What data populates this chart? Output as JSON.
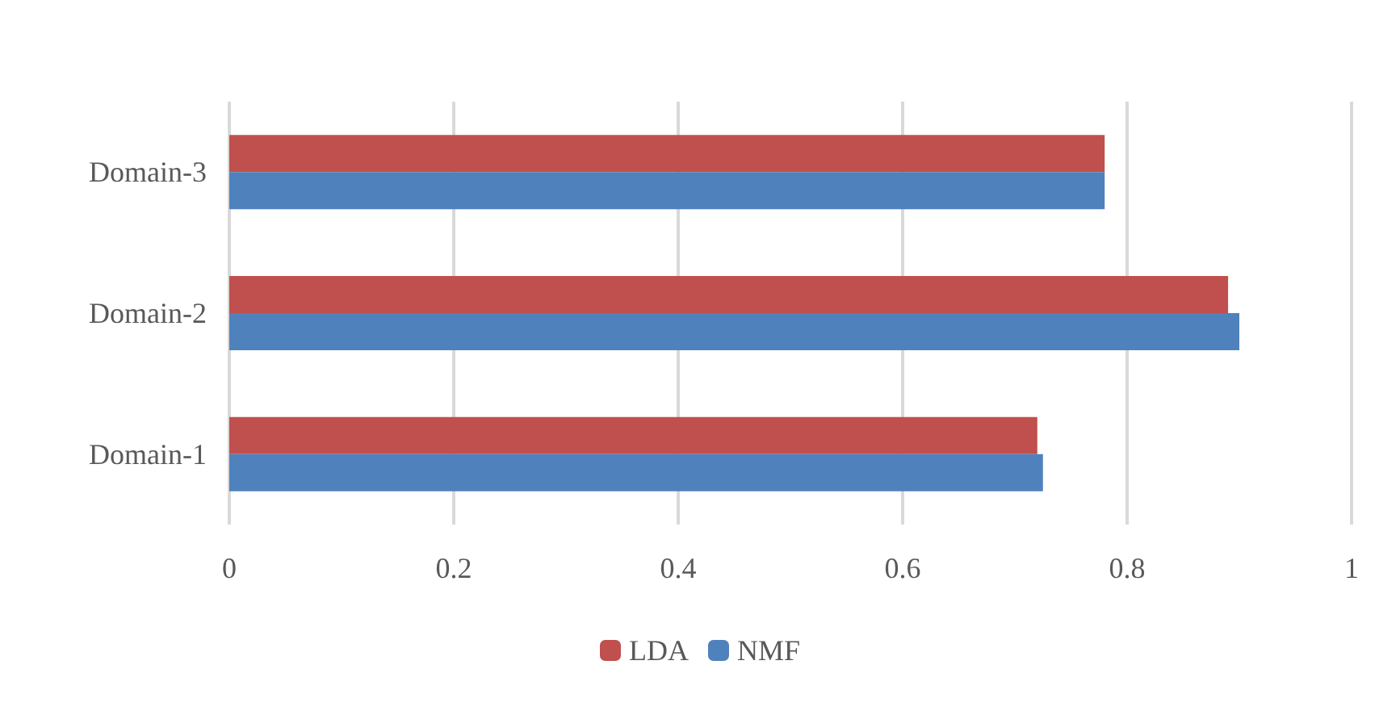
{
  "chart_data": {
    "type": "bar",
    "orientation": "horizontal",
    "categories": [
      "Domain-3",
      "Domain-2",
      "Domain-1"
    ],
    "series": [
      {
        "name": "LDA",
        "color": "#c0504d",
        "values": [
          0.78,
          0.89,
          0.72
        ]
      },
      {
        "name": "NMF",
        "color": "#4f81bd",
        "values": [
          0.78,
          0.9,
          0.725
        ]
      }
    ],
    "xlim": [
      0,
      1
    ],
    "xticks": [
      0,
      0.2,
      0.4,
      0.6,
      0.8,
      1
    ],
    "grid": "x",
    "legend": "bottom"
  }
}
